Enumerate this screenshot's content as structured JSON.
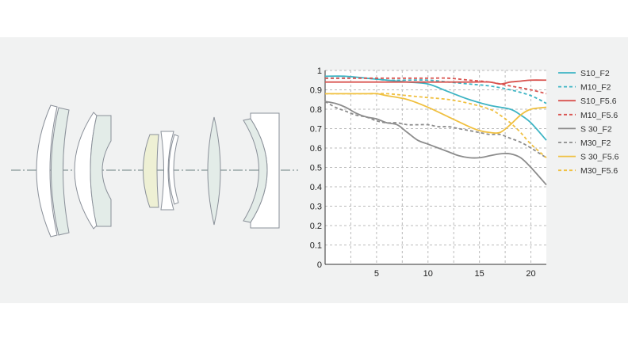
{
  "colors": {
    "band": "#f1f2f2",
    "teal": "#3db4c4",
    "red": "#d9534f",
    "gray": "#8c8c8c",
    "gold": "#f0c040",
    "lens_outline": "#8a9099",
    "lens_fill_green": "#e3ece8",
    "lens_fill_yellow": "#eef0d4",
    "lens_fill_white": "#ffffff",
    "axis_line": "#6c8080"
  },
  "lens_diagram": {
    "elements": [
      "meniscus",
      "meniscus",
      "meniscus-concave",
      "cemented",
      "biconvex-yellow",
      "biconcave",
      "meniscus-small",
      "biconvex",
      "meniscus-large"
    ]
  },
  "chart_data": {
    "type": "line",
    "x_ticks": [
      "5",
      "10",
      "15",
      "20"
    ],
    "y_ticks": [
      "0",
      "0.1",
      "0.2",
      "0.3",
      "0.4",
      "0.5",
      "0.6",
      "0.7",
      "0.8",
      "0.9",
      "1"
    ],
    "xlim": [
      0,
      21.5
    ],
    "ylim": [
      0,
      1
    ],
    "grid": true,
    "legend_position": "right",
    "series": [
      {
        "name": "S10_F2",
        "color": "teal",
        "dashed": false,
        "x": [
          0,
          2,
          4,
          6,
          8,
          10,
          12,
          14,
          16,
          18,
          19,
          20,
          21.5
        ],
        "y": [
          0.97,
          0.97,
          0.96,
          0.95,
          0.94,
          0.93,
          0.89,
          0.85,
          0.82,
          0.8,
          0.77,
          0.73,
          0.64
        ]
      },
      {
        "name": "M10_F2",
        "color": "teal",
        "dashed": true,
        "x": [
          0,
          2,
          4,
          6,
          8,
          10,
          12,
          14,
          16,
          18,
          20,
          21.5
        ],
        "y": [
          0.96,
          0.96,
          0.96,
          0.95,
          0.95,
          0.95,
          0.94,
          0.93,
          0.92,
          0.9,
          0.87,
          0.83
        ]
      },
      {
        "name": "S10_F5.6",
        "color": "red",
        "dashed": false,
        "x": [
          0,
          2,
          4,
          6,
          8,
          10,
          12,
          14,
          16,
          17,
          18,
          19,
          20,
          21.5
        ],
        "y": [
          0.94,
          0.94,
          0.94,
          0.94,
          0.94,
          0.94,
          0.94,
          0.94,
          0.94,
          0.93,
          0.94,
          0.945,
          0.95,
          0.95
        ]
      },
      {
        "name": "M10_F5.6",
        "color": "red",
        "dashed": true,
        "x": [
          0,
          2,
          4,
          6,
          8,
          10,
          12,
          14,
          16,
          18,
          20,
          21.5
        ],
        "y": [
          0.96,
          0.96,
          0.96,
          0.96,
          0.96,
          0.96,
          0.96,
          0.95,
          0.94,
          0.92,
          0.9,
          0.88
        ]
      },
      {
        "name": "S 30_F2",
        "color": "gray",
        "dashed": false,
        "x": [
          0,
          1,
          2,
          3,
          4,
          5,
          6,
          7,
          8,
          9,
          10,
          11,
          12,
          13,
          14,
          15,
          16,
          17,
          18,
          19,
          20,
          21.5
        ],
        "y": [
          0.84,
          0.83,
          0.81,
          0.78,
          0.76,
          0.75,
          0.73,
          0.72,
          0.68,
          0.64,
          0.62,
          0.6,
          0.58,
          0.56,
          0.55,
          0.55,
          0.56,
          0.57,
          0.57,
          0.55,
          0.5,
          0.41
        ]
      },
      {
        "name": "M30_F2",
        "color": "gray",
        "dashed": true,
        "x": [
          0,
          1,
          2,
          3,
          4,
          5,
          6,
          7,
          8,
          9,
          10,
          11,
          12,
          13,
          14,
          15,
          16,
          17,
          18,
          19,
          20,
          21.5
        ],
        "y": [
          0.84,
          0.81,
          0.79,
          0.77,
          0.76,
          0.74,
          0.73,
          0.73,
          0.72,
          0.72,
          0.72,
          0.71,
          0.71,
          0.7,
          0.69,
          0.68,
          0.67,
          0.67,
          0.65,
          0.63,
          0.6,
          0.55
        ]
      },
      {
        "name": "S 30_F5.6",
        "color": "gold",
        "dashed": false,
        "x": [
          0,
          2,
          4,
          5,
          6,
          8,
          10,
          12,
          14,
          15,
          16,
          17,
          18,
          19,
          20,
          21.5
        ],
        "y": [
          0.88,
          0.88,
          0.88,
          0.88,
          0.87,
          0.85,
          0.81,
          0.76,
          0.71,
          0.69,
          0.68,
          0.68,
          0.72,
          0.77,
          0.8,
          0.81
        ]
      },
      {
        "name": "M30_F5.6",
        "color": "gold",
        "dashed": true,
        "x": [
          0,
          2,
          4,
          6,
          8,
          10,
          12,
          14,
          16,
          17,
          18,
          19,
          20,
          21.5
        ],
        "y": [
          0.88,
          0.88,
          0.88,
          0.88,
          0.87,
          0.86,
          0.85,
          0.83,
          0.8,
          0.77,
          0.73,
          0.68,
          0.62,
          0.55
        ]
      }
    ]
  }
}
